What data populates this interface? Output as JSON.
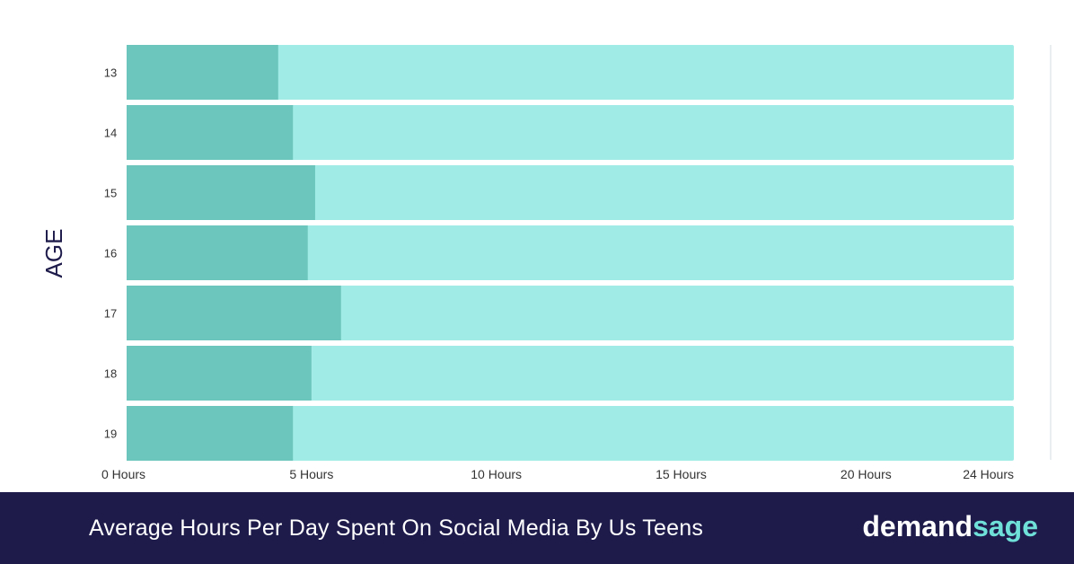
{
  "chart_data": {
    "type": "bar",
    "orientation": "horizontal",
    "title": "Average Hours Per Day Spent On Social Media By Us Teens",
    "ylabel": "AGE",
    "xlabel": "",
    "categories": [
      "13",
      "14",
      "15",
      "16",
      "17",
      "18",
      "19"
    ],
    "values": [
      4.1,
      4.5,
      5.1,
      4.9,
      5.8,
      5.0,
      4.5
    ],
    "xlim": [
      0,
      24
    ],
    "x_ticks": [
      {
        "value": 0,
        "label": "0 Hours"
      },
      {
        "value": 5,
        "label": "5 Hours"
      },
      {
        "value": 10,
        "label": "10 Hours"
      },
      {
        "value": 15,
        "label": "15 Hours"
      },
      {
        "value": 20,
        "label": "20 Hours"
      },
      {
        "value": 24,
        "label": "24 Hours"
      }
    ],
    "grid": false,
    "legend": "none",
    "colors": {
      "bar": "#6cc6bd",
      "track": "#a1ebe6",
      "footer_bg": "#1e1b4b",
      "axis_text": "#1e1b4b"
    }
  },
  "footer": {
    "title": "Average Hours Per Day Spent On Social Media By Us Teens",
    "brand_part1": "demand",
    "brand_part2": "sage"
  }
}
